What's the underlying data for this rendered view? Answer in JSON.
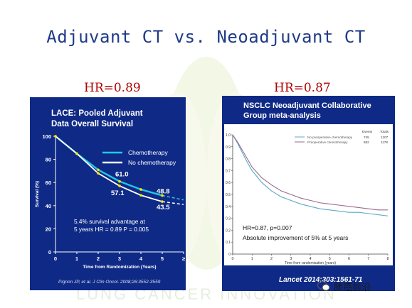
{
  "slide": {
    "title": "Adjuvant CT vs. Neoadjuvant CT",
    "left_hr": "HR=0.89",
    "right_hr": "HR=0.87",
    "watermark_text": "LUNG CANCER INNOVATION",
    "footer_account": "肺癌前沿"
  },
  "chart_data": [
    {
      "type": "line",
      "title": "LACE: Pooled Adjuvant Data Overall Survival",
      "xlabel": "Time from Randomization (Years)",
      "ylabel": "Survival (%)",
      "xlim": [
        0,
        6
      ],
      "ylim": [
        0,
        100
      ],
      "x_ticks": [
        "0",
        "1",
        "2",
        "3",
        "4",
        "5",
        "≥"
      ],
      "y_ticks": [
        "0",
        "20",
        "40",
        "60",
        "80",
        "100"
      ],
      "legend": "center-right",
      "series": [
        {
          "name": "Chemotherapy",
          "color": "#22c8e6",
          "x": [
            0,
            1,
            2,
            3,
            4,
            5,
            6
          ],
          "y": [
            100,
            85,
            71,
            61,
            54,
            48.8,
            45
          ]
        },
        {
          "name": "No chemotherapy",
          "color": "#ffffff",
          "x": [
            0,
            1,
            2,
            3,
            4,
            5,
            6
          ],
          "y": [
            100,
            85,
            68,
            57.1,
            49,
            43.5,
            41
          ]
        }
      ],
      "data_labels": [
        "61.0",
        "57.1",
        "48.8",
        "43.5"
      ],
      "annotation_line1": "5.4% survival advantage at",
      "annotation_line2": "5 years   HR = 0.89  P = 0.005",
      "citation": "Pignon JP, et al. J Clin Oncol. 2008;26:3552-3559"
    },
    {
      "type": "line",
      "title": "NSCLC Neoadjuvant Collaborative Group meta-analysis",
      "xlabel": "Time from randomisation (years)",
      "xlim": [
        0,
        8
      ],
      "ylim": [
        0,
        1.0
      ],
      "x_ticks": [
        "0",
        "1",
        "2",
        "3",
        "4",
        "5",
        "6",
        "7",
        "8"
      ],
      "y_ticks": [
        "0",
        "0.1",
        "0.2",
        "0.3",
        "0.4",
        "0.5",
        "0.6",
        "0.7",
        "0.8",
        "0.9",
        "1.0"
      ],
      "legend": "top-right",
      "legend_headers": [
        "Events",
        "Totals"
      ],
      "series": [
        {
          "name": "No preoperative chemotherapy",
          "color": "#5aa9c8",
          "events": "745",
          "totals": "1207",
          "x": [
            0,
            0.25,
            0.5,
            0.75,
            1,
            1.5,
            2,
            2.5,
            3,
            3.5,
            4,
            4.5,
            5,
            5.5,
            6,
            6.5,
            7,
            7.5,
            8
          ],
          "y": [
            1.0,
            0.93,
            0.85,
            0.77,
            0.7,
            0.6,
            0.53,
            0.48,
            0.45,
            0.42,
            0.4,
            0.38,
            0.37,
            0.36,
            0.35,
            0.35,
            0.34,
            0.33,
            0.32
          ]
        },
        {
          "name": "Preoperative chemotherapy",
          "color": "#9a6a8c",
          "events": "682",
          "totals": "1178",
          "x": [
            0,
            0.25,
            0.5,
            0.75,
            1,
            1.5,
            2,
            2.5,
            3,
            3.5,
            4,
            4.5,
            5,
            5.5,
            6,
            6.5,
            7,
            7.5,
            8
          ],
          "y": [
            1.0,
            0.94,
            0.87,
            0.8,
            0.73,
            0.64,
            0.58,
            0.53,
            0.5,
            0.47,
            0.45,
            0.43,
            0.42,
            0.41,
            0.4,
            0.39,
            0.38,
            0.37,
            0.37
          ]
        }
      ],
      "annotation_line1": "HR=0.87, p=0.007",
      "annotation_line2": "Absolute improvement of 5% at 5 years",
      "citation": "Lancet 2014;303:1561-71"
    }
  ]
}
